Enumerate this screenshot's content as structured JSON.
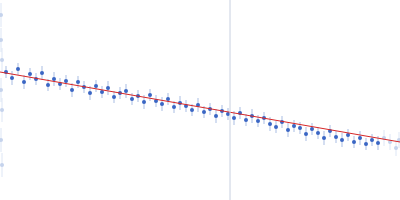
{
  "chart_data": {
    "type": "scatter",
    "tick_labels": false,
    "grid": false,
    "xlim": [
      0,
      400
    ],
    "ylim": [
      0,
      200
    ],
    "xticks": [],
    "yticks": [],
    "series": [
      {
        "type": "scatter",
        "color": "#c5d3ec",
        "marker": "circle",
        "x": [
          1,
          1,
          2,
          1,
          2,
          1,
          2,
          384,
          390,
          396,
          399
        ],
        "values": [
          185,
          160,
          140,
          110,
          90,
          60,
          35,
          62,
          58,
          52,
          60
        ],
        "errors": [
          12,
          12,
          12,
          12,
          12,
          12,
          12,
          8,
          8,
          8,
          8
        ]
      },
      {
        "type": "scatter",
        "color": "#3a66c4",
        "marker": "circle",
        "x": [
          6,
          12,
          18,
          24,
          30,
          36,
          42,
          48,
          54,
          60,
          66,
          72,
          78,
          84,
          90,
          96,
          102,
          108,
          114,
          120,
          126,
          132,
          138,
          144,
          150,
          156,
          162,
          168,
          174,
          180,
          186,
          192,
          198,
          204,
          210,
          216,
          222,
          228,
          234,
          240,
          246,
          252,
          258,
          264,
          270,
          276,
          282,
          288,
          294,
          300,
          306,
          312,
          318,
          324,
          330,
          336,
          342,
          348,
          354,
          360,
          366,
          372,
          378
        ],
        "values": [
          128,
          122,
          131,
          118,
          126,
          121,
          127,
          115,
          121,
          116,
          119,
          110,
          118,
          113,
          107,
          114,
          108,
          112,
          103,
          107,
          109,
          101,
          104,
          98,
          105,
          99,
          96,
          101,
          93,
          97,
          94,
          90,
          95,
          88,
          91,
          84,
          89,
          86,
          82,
          87,
          80,
          84,
          79,
          82,
          76,
          73,
          78,
          70,
          74,
          72,
          66,
          71,
          67,
          62,
          69,
          63,
          60,
          65,
          58,
          62,
          56,
          60,
          57
        ],
        "errors": [
          6,
          7,
          6,
          7,
          6,
          6,
          7,
          6,
          7,
          6,
          6,
          7,
          6,
          6,
          7,
          6,
          6,
          7,
          6,
          6,
          7,
          6,
          6,
          7,
          6,
          6,
          7,
          6,
          6,
          7,
          6,
          6,
          7,
          6,
          6,
          7,
          6,
          6,
          7,
          6,
          6,
          7,
          6,
          6,
          7,
          6,
          6,
          7,
          6,
          6,
          7,
          6,
          6,
          7,
          6,
          6,
          7,
          6,
          6,
          7,
          6,
          6,
          7
        ]
      },
      {
        "type": "line",
        "color": "#d62728",
        "line_style": "solid",
        "x": [
          0,
          400
        ],
        "values": [
          128,
          58
        ]
      },
      {
        "type": "line",
        "color": "#c8d0e0",
        "line_style": "solid",
        "x": [
          230,
          230
        ],
        "values": [
          0,
          200
        ]
      }
    ]
  }
}
